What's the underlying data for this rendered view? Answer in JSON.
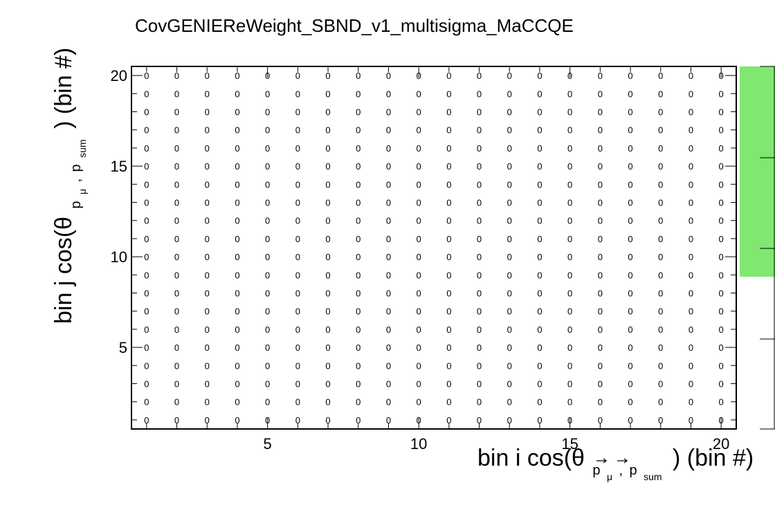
{
  "chart_data": {
    "type": "heatmap",
    "title": "CovGENIEReWeight_SBND_v1_multisigma_MaCCQE",
    "x_bins": [
      1,
      2,
      3,
      4,
      5,
      6,
      7,
      8,
      9,
      10,
      11,
      12,
      13,
      14,
      15,
      16,
      17,
      18,
      19,
      20
    ],
    "y_bins": [
      1,
      2,
      3,
      4,
      5,
      6,
      7,
      8,
      9,
      10,
      11,
      12,
      13,
      14,
      15,
      16,
      17,
      18,
      19,
      20
    ],
    "cell_value": 0,
    "cell_label": "0",
    "xlim": [
      0.5,
      20.5
    ],
    "ylim": [
      0.5,
      20.5
    ],
    "x_ticks": [
      5,
      10,
      15,
      20
    ],
    "y_ticks": [
      5,
      10,
      15,
      20
    ],
    "x_tick_labels": [
      "5",
      "10",
      "15",
      "20"
    ],
    "y_tick_labels": [
      "5",
      "10",
      "15",
      "20"
    ],
    "xlabel_parts": {
      "prefix": "bin i cos(θ",
      "sub1": "p",
      "sub1b": "μ",
      "sub2": "p",
      "sub2b": "sum",
      "suffix": ") (bin #)"
    },
    "ylabel_parts": {
      "prefix": "bin j cos(θ",
      "sub1": "p",
      "sub1b": "μ",
      "sub2": "p",
      "sub2b": "sum",
      "suffix": ") (bin #)"
    },
    "palette_fill_fraction": 0.58,
    "colors": {
      "frame": "#000000",
      "palette": "#80e870",
      "cell_fill": "#ffffff"
    },
    "grid": false
  }
}
